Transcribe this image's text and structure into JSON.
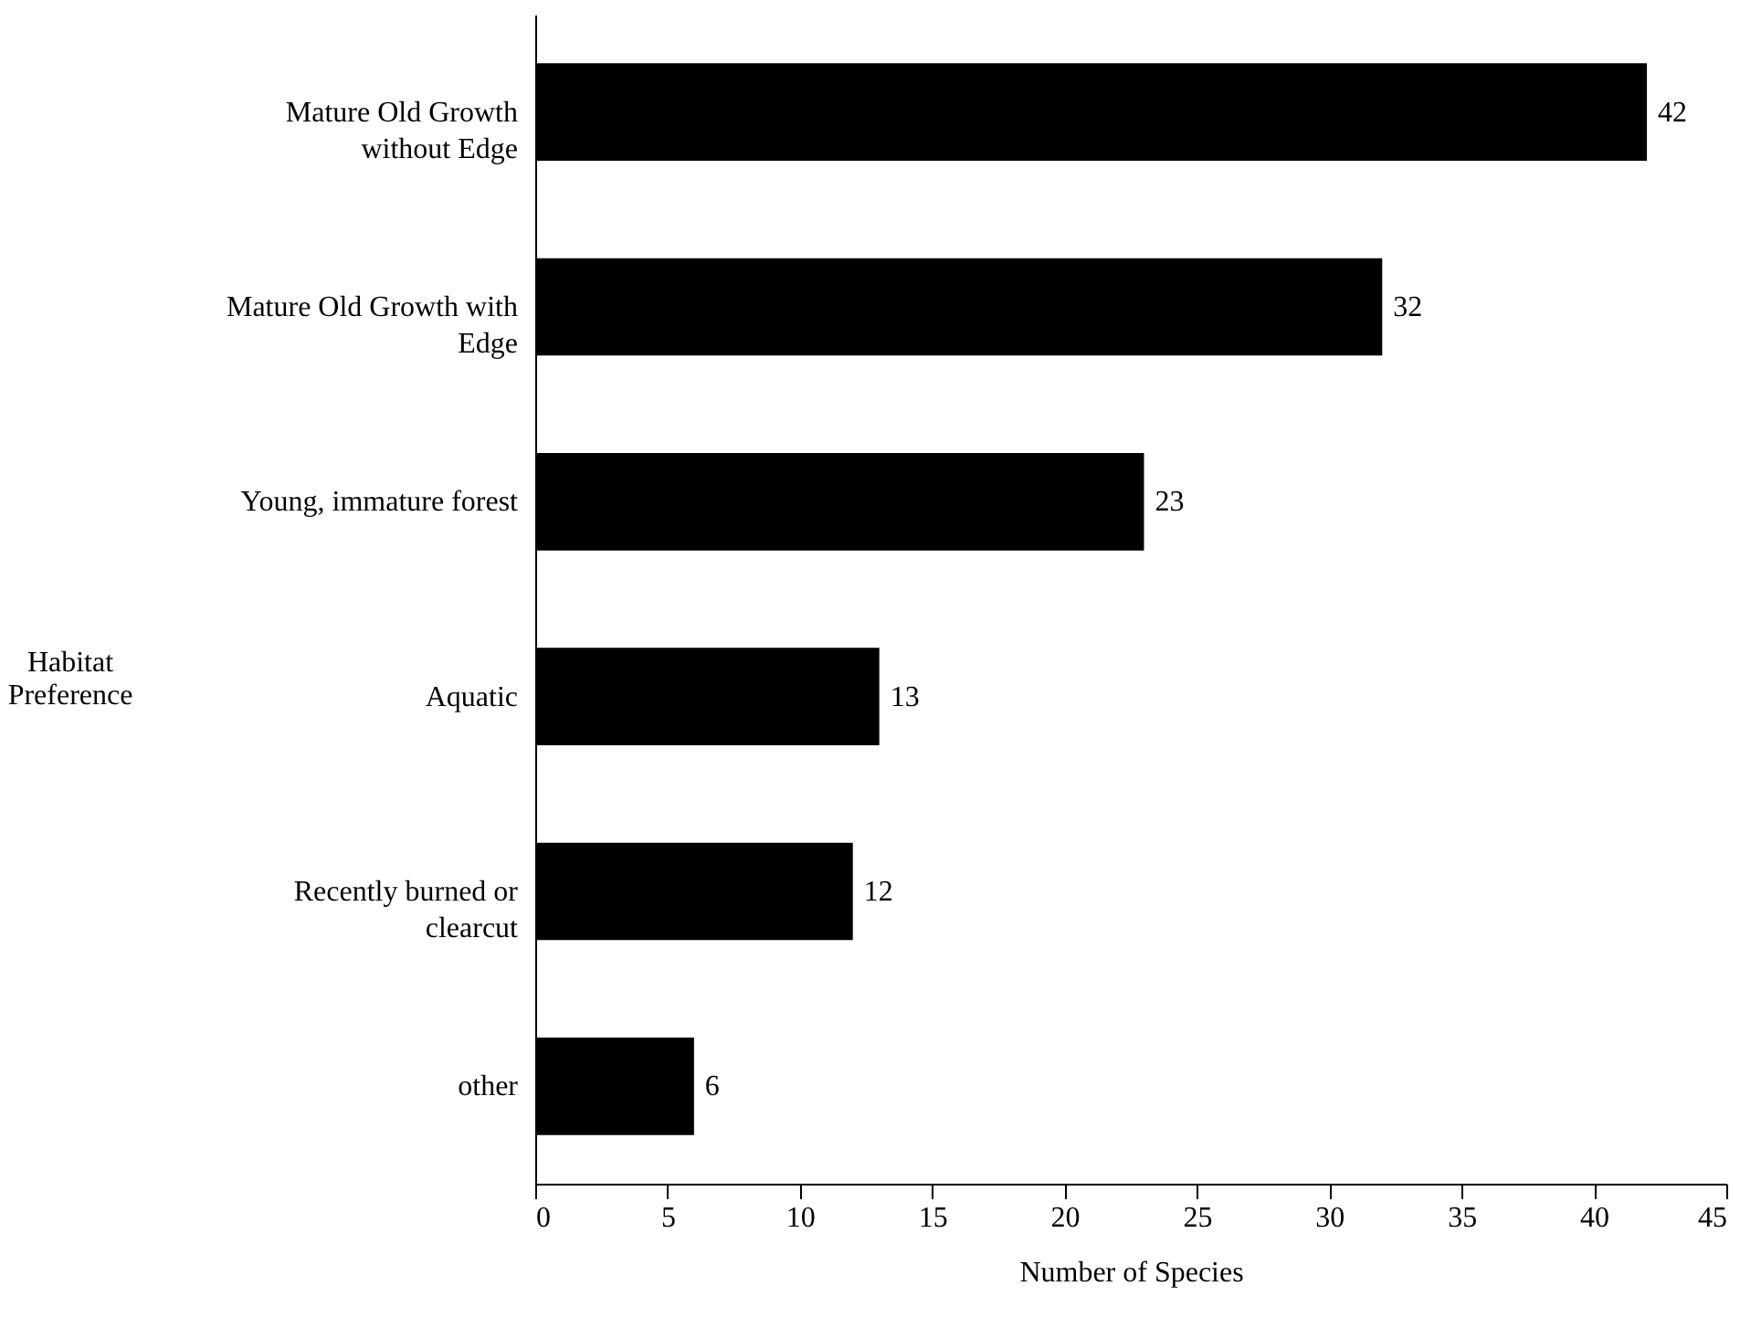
{
  "chart_data": {
    "type": "bar",
    "orientation": "horizontal",
    "xlabel": "Number of Species",
    "ylabel": "Habitat Preference",
    "categories": [
      "Mature Old Growth without Edge",
      "Mature Old Growth with Edge",
      "Young, immature forest",
      "Aquatic",
      "Recently burned or clearcut",
      "other"
    ],
    "values": [
      42,
      32,
      23,
      13,
      12,
      6
    ],
    "color": "#000000",
    "xlim": [
      0,
      45
    ],
    "xticks": [
      0,
      5,
      10,
      15,
      20,
      25,
      30,
      35,
      40,
      45
    ],
    "data_labels": true
  }
}
